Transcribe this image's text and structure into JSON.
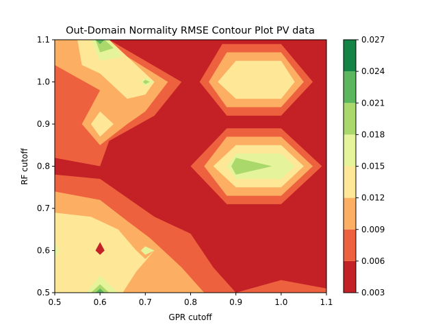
{
  "chart_data": {
    "type": "contour",
    "title": "Out-Domain Normality RMSE Contour Plot PV data",
    "xlabel": "GPR cutoff",
    "ylabel": "RF cutoff",
    "xlim": [
      0.5,
      1.1
    ],
    "ylim": [
      0.5,
      1.1
    ],
    "xticks": [
      "0.5",
      "0.6",
      "0.7",
      "0.8",
      "0.9",
      "1.0",
      "1.1"
    ],
    "yticks": [
      "0.5",
      "0.6",
      "0.7",
      "0.8",
      "0.9",
      "1.0",
      "1.1"
    ],
    "colorbar": {
      "levels": [
        0.003,
        0.006,
        0.009,
        0.012,
        0.015,
        0.018,
        0.021,
        0.024,
        0.027
      ],
      "tick_labels": [
        "0.003",
        "0.006",
        "0.009",
        "0.012",
        "0.015",
        "0.018",
        "0.021",
        "0.024",
        "0.027"
      ],
      "colors": [
        "#c42127",
        "#ee613e",
        "#fcaf62",
        "#fee797",
        "#e5f49b",
        "#aad86a",
        "#5cb65e",
        "#138445"
      ]
    },
    "regions": [
      {
        "level": 1,
        "points": [
          [
            0.5,
            1.1
          ],
          [
            0.62,
            1.1
          ],
          [
            0.78,
            1.0
          ],
          [
            0.72,
            0.92
          ],
          [
            0.62,
            0.86
          ],
          [
            0.6,
            0.8
          ],
          [
            0.5,
            0.82
          ]
        ]
      },
      {
        "level": 1,
        "points": [
          [
            0.5,
            0.78
          ],
          [
            0.6,
            0.77
          ],
          [
            0.72,
            0.68
          ],
          [
            0.8,
            0.64
          ],
          [
            0.85,
            0.56
          ],
          [
            0.9,
            0.5
          ],
          [
            0.5,
            0.5
          ]
        ]
      },
      {
        "level": 1,
        "points": [
          [
            0.82,
            1.0
          ],
          [
            0.87,
            1.09
          ],
          [
            1.0,
            1.09
          ],
          [
            1.07,
            1.0
          ],
          [
            1.0,
            0.92
          ],
          [
            0.88,
            0.92
          ]
        ]
      },
      {
        "level": 1,
        "points": [
          [
            0.8,
            0.8
          ],
          [
            0.88,
            0.89
          ],
          [
            1.0,
            0.89
          ],
          [
            1.09,
            0.8
          ],
          [
            1.0,
            0.71
          ],
          [
            0.88,
            0.71
          ]
        ]
      },
      {
        "level": 1,
        "points": [
          [
            0.9,
            0.5
          ],
          [
            1.0,
            0.53
          ],
          [
            1.1,
            0.51
          ],
          [
            1.1,
            0.5
          ]
        ]
      },
      {
        "level": 2,
        "points": [
          [
            0.5,
            1.1
          ],
          [
            0.6,
            1.1
          ],
          [
            0.75,
            1.0
          ],
          [
            0.7,
            0.93
          ],
          [
            0.66,
            0.9
          ],
          [
            0.6,
            0.85
          ],
          [
            0.56,
            0.9
          ],
          [
            0.6,
            0.98
          ],
          [
            0.5,
            1.04
          ]
        ]
      },
      {
        "level": 2,
        "points": [
          [
            0.5,
            0.74
          ],
          [
            0.6,
            0.72
          ],
          [
            0.66,
            0.67
          ],
          [
            0.71,
            0.63
          ],
          [
            0.78,
            0.56
          ],
          [
            0.83,
            0.5
          ],
          [
            0.5,
            0.5
          ]
        ]
      },
      {
        "level": 2,
        "points": [
          [
            0.84,
            1.0
          ],
          [
            0.88,
            1.07
          ],
          [
            1.0,
            1.07
          ],
          [
            1.05,
            1.0
          ],
          [
            1.0,
            0.94
          ],
          [
            0.88,
            0.94
          ]
        ]
      },
      {
        "level": 2,
        "points": [
          [
            0.83,
            0.8
          ],
          [
            0.88,
            0.87
          ],
          [
            1.0,
            0.87
          ],
          [
            1.07,
            0.8
          ],
          [
            1.0,
            0.73
          ],
          [
            0.88,
            0.73
          ]
        ]
      },
      {
        "level": 3,
        "points": [
          [
            0.55,
            1.1
          ],
          [
            0.62,
            1.1
          ],
          [
            0.72,
            1.0
          ],
          [
            0.7,
            0.97
          ],
          [
            0.66,
            0.96
          ],
          [
            0.6,
            1.02
          ],
          [
            0.56,
            1.04
          ]
        ]
      },
      {
        "level": 3,
        "points": [
          [
            0.58,
            0.9
          ],
          [
            0.6,
            0.93
          ],
          [
            0.63,
            0.9
          ],
          [
            0.6,
            0.87
          ]
        ]
      },
      {
        "level": 3,
        "points": [
          [
            0.5,
            0.69
          ],
          [
            0.58,
            0.68
          ],
          [
            0.64,
            0.65
          ],
          [
            0.68,
            0.6
          ],
          [
            0.7,
            0.58
          ],
          [
            0.72,
            0.6
          ],
          [
            0.68,
            0.55
          ],
          [
            0.65,
            0.5
          ],
          [
            0.5,
            0.5
          ]
        ]
      },
      {
        "level": 3,
        "points": [
          [
            0.86,
            1.0
          ],
          [
            0.9,
            1.05
          ],
          [
            1.0,
            1.05
          ],
          [
            1.03,
            1.0
          ],
          [
            1.0,
            0.96
          ],
          [
            0.9,
            0.96
          ]
        ]
      },
      {
        "level": 3,
        "points": [
          [
            0.85,
            0.8
          ],
          [
            0.9,
            0.85
          ],
          [
            1.0,
            0.85
          ],
          [
            1.05,
            0.8
          ],
          [
            1.0,
            0.75
          ],
          [
            0.9,
            0.75
          ]
        ]
      },
      {
        "level": 4,
        "points": [
          [
            0.58,
            1.1
          ],
          [
            0.62,
            1.1
          ],
          [
            0.65,
            1.06
          ],
          [
            0.6,
            1.05
          ]
        ]
      },
      {
        "level": 4,
        "points": [
          [
            0.69,
            1.0
          ],
          [
            0.7,
            1.01
          ],
          [
            0.72,
            1.0
          ],
          [
            0.7,
            0.99
          ]
        ]
      },
      {
        "level": 4,
        "points": [
          [
            0.5,
            0.62
          ],
          [
            0.51,
            0.6
          ],
          [
            0.5,
            0.58
          ]
        ]
      },
      {
        "level": 4,
        "points": [
          [
            0.69,
            0.6
          ],
          [
            0.7,
            0.61
          ],
          [
            0.72,
            0.6
          ],
          [
            0.7,
            0.59
          ]
        ]
      },
      {
        "level": 4,
        "points": [
          [
            0.57,
            0.5
          ],
          [
            0.6,
            0.54
          ],
          [
            0.64,
            0.5
          ]
        ]
      },
      {
        "level": 4,
        "points": [
          [
            0.88,
            0.8
          ],
          [
            0.9,
            0.83
          ],
          [
            1.0,
            0.83
          ],
          [
            1.03,
            0.8
          ],
          [
            1.0,
            0.77
          ],
          [
            0.9,
            0.77
          ]
        ]
      },
      {
        "level": 5,
        "points": [
          [
            0.59,
            1.1
          ],
          [
            0.61,
            1.1
          ],
          [
            0.63,
            1.08
          ],
          [
            0.6,
            1.07
          ]
        ]
      },
      {
        "level": 5,
        "points": [
          [
            0.695,
            1.0
          ],
          [
            0.7,
            1.005
          ],
          [
            0.71,
            1.0
          ],
          [
            0.7,
            0.995
          ]
        ]
      },
      {
        "level": 5,
        "points": [
          [
            0.58,
            0.5
          ],
          [
            0.6,
            0.52
          ],
          [
            0.62,
            0.5
          ]
        ]
      },
      {
        "level": 5,
        "points": [
          [
            0.89,
            0.8
          ],
          [
            0.9,
            0.82
          ],
          [
            0.98,
            0.8
          ],
          [
            0.9,
            0.78
          ]
        ]
      },
      {
        "level": 6,
        "points": [
          [
            0.59,
            1.1
          ],
          [
            0.61,
            1.1
          ],
          [
            0.6,
            1.09
          ]
        ]
      },
      {
        "level": 6,
        "points": [
          [
            0.59,
            0.5
          ],
          [
            0.6,
            0.51
          ],
          [
            0.61,
            0.5
          ]
        ]
      },
      {
        "level": 0,
        "points": [
          [
            0.59,
            0.6
          ],
          [
            0.6,
            0.62
          ],
          [
            0.61,
            0.6
          ],
          [
            0.6,
            0.59
          ]
        ]
      }
    ]
  }
}
